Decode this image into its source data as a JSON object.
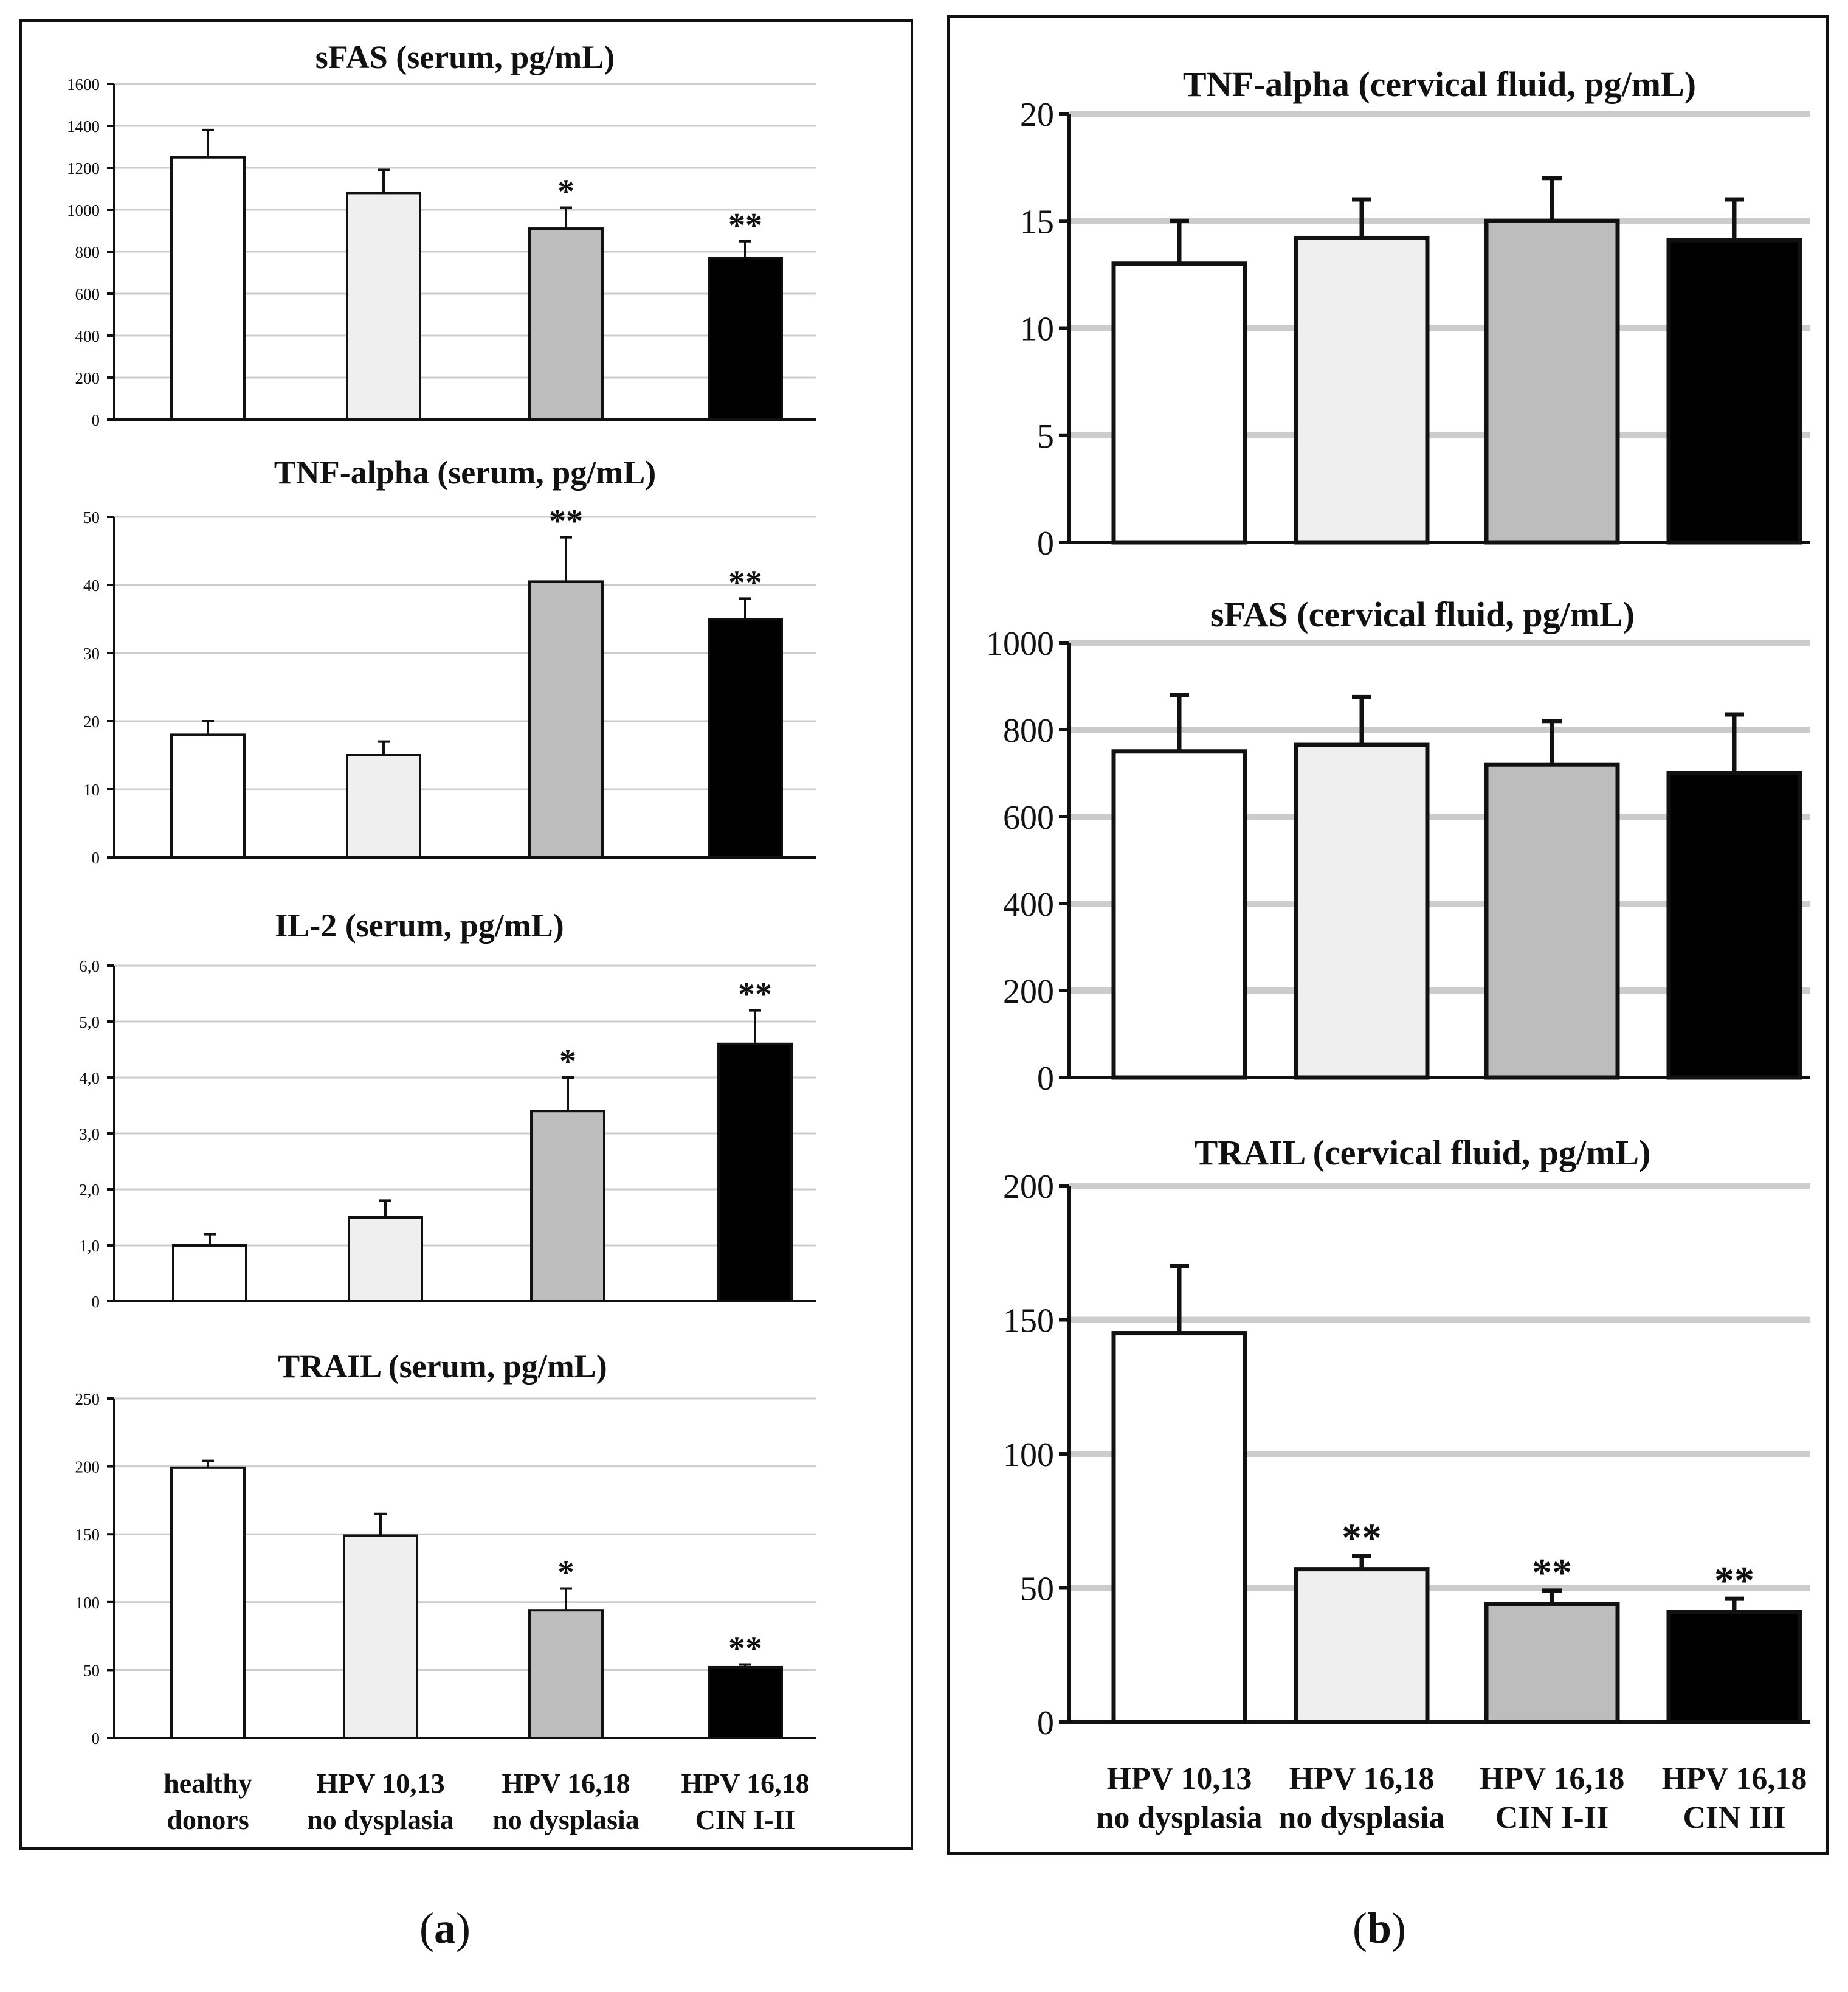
{
  "captions": {
    "a": "a",
    "b": "b"
  },
  "colors": {
    "healthy": "#ffffff",
    "light": "#efefef",
    "mid": "#bdbdbd",
    "dark": "#000000",
    "grid": "#cccccc",
    "axis": "#111111"
  },
  "chart_data": [
    {
      "panel": "a",
      "type": "bar",
      "title": "sFAS (serum, pg/mL)",
      "categories": [
        "healthy donors",
        "HPV 10,13 no dysplasia",
        "HPV 16,18 no dysplasia",
        "HPV 16,18 CIN I-II"
      ],
      "values": [
        1250,
        1080,
        910,
        770
      ],
      "errors": [
        130,
        110,
        100,
        80
      ],
      "significance": [
        "",
        "",
        "*",
        "**"
      ],
      "ylim": [
        0,
        1600
      ],
      "yticks": [
        0,
        200,
        400,
        600,
        800,
        1000,
        1200,
        1400,
        1600
      ],
      "ytick_labels": [
        "0",
        "200",
        "400",
        "600",
        "800",
        "1000",
        "1200",
        "1400",
        "1600"
      ]
    },
    {
      "panel": "a",
      "type": "bar",
      "title": "TNF-alpha (serum, pg/mL)",
      "categories": [
        "healthy donors",
        "HPV 10,13 no dysplasia",
        "HPV 16,18 no dysplasia",
        "HPV 16,18 CIN I-II"
      ],
      "values": [
        18,
        15,
        40.5,
        35
      ],
      "errors": [
        2,
        2,
        6.5,
        3
      ],
      "significance": [
        "",
        "",
        "**",
        "**"
      ],
      "ylim": [
        0,
        50
      ],
      "yticks": [
        0,
        10,
        20,
        30,
        40,
        50
      ],
      "ytick_labels": [
        "0",
        "10",
        "20",
        "30",
        "40",
        "50"
      ]
    },
    {
      "panel": "a",
      "type": "bar",
      "title": "IL-2 (serum, pg/mL)",
      "categories": [
        "healthy donors",
        "HPV 10,13 no dysplasia",
        "HPV 16,18 no dysplasia",
        "HPV 16,18 CIN I-II"
      ],
      "values": [
        1.0,
        1.5,
        3.4,
        4.6
      ],
      "errors": [
        0.2,
        0.3,
        0.6,
        0.6
      ],
      "significance": [
        "",
        "",
        "*",
        "**"
      ],
      "ylim": [
        0,
        6
      ],
      "yticks": [
        0,
        1,
        2,
        3,
        4,
        5,
        6
      ],
      "ytick_labels": [
        "0",
        "1,0",
        "2,0",
        "3,0",
        "4,0",
        "5,0",
        "6,0"
      ]
    },
    {
      "panel": "a",
      "type": "bar",
      "title": "TRAIL (serum, pg/mL)",
      "categories": [
        "healthy donors",
        "HPV 10,13 no dysplasia",
        "HPV 16,18 no dysplasia",
        "HPV 16,18 CIN I-II"
      ],
      "values": [
        199,
        149,
        94,
        52
      ],
      "errors": [
        5,
        16,
        16,
        2
      ],
      "significance": [
        "",
        "",
        "*",
        "**"
      ],
      "ylim": [
        0,
        250
      ],
      "yticks": [
        0,
        50,
        100,
        150,
        200,
        250
      ],
      "ytick_labels": [
        "0",
        "50",
        "100",
        "150",
        "200",
        "250"
      ],
      "xtick_lines": [
        [
          "healthy",
          "donors"
        ],
        [
          "HPV 10,13",
          "no dysplasia"
        ],
        [
          "HPV 16,18",
          "no dysplasia"
        ],
        [
          "HPV 16,18",
          "CIN I-II"
        ]
      ]
    },
    {
      "panel": "b",
      "type": "bar",
      "title": "TNF-alpha (cervical fluid, pg/mL)",
      "categories": [
        "HPV 10,13 no dysplasia",
        "HPV 16,18 no dysplasia",
        "HPV 16,18 CIN I-II",
        "HPV 16,18 CIN III"
      ],
      "values": [
        13,
        14.2,
        15,
        14.1
      ],
      "errors": [
        2,
        1.8,
        2,
        1.9
      ],
      "significance": [
        "",
        "",
        "",
        ""
      ],
      "ylim": [
        0,
        20
      ],
      "yticks": [
        0,
        5,
        10,
        15,
        20
      ],
      "ytick_labels": [
        "0",
        "5",
        "10",
        "15",
        "20"
      ]
    },
    {
      "panel": "b",
      "type": "bar",
      "title": "sFAS (cervical fluid, pg/mL)",
      "categories": [
        "HPV 10,13 no dysplasia",
        "HPV 16,18 no dysplasia",
        "HPV 16,18 CIN I-II",
        "HPV 16,18 CIN III"
      ],
      "values": [
        750,
        765,
        720,
        700
      ],
      "errors": [
        130,
        110,
        100,
        135
      ],
      "significance": [
        "",
        "",
        "",
        ""
      ],
      "ylim": [
        0,
        1000
      ],
      "yticks": [
        0,
        200,
        400,
        600,
        800,
        1000
      ],
      "ytick_labels": [
        "0",
        "200",
        "400",
        "600",
        "800",
        "1000"
      ]
    },
    {
      "panel": "b",
      "type": "bar",
      "title": "TRAIL (cervical fluid, pg/mL)",
      "categories": [
        "HPV 10,13 no dysplasia",
        "HPV 16,18 no dysplasia",
        "HPV 16,18 CIN I-II",
        "HPV 16,18 CIN III"
      ],
      "values": [
        145,
        57,
        44,
        41
      ],
      "errors": [
        25,
        5,
        5,
        5
      ],
      "significance": [
        "",
        "**",
        "**",
        "**"
      ],
      "ylim": [
        0,
        200
      ],
      "yticks": [
        0,
        50,
        100,
        150,
        200
      ],
      "ytick_labels": [
        "0",
        "50",
        "100",
        "150",
        "200"
      ],
      "xtick_lines": [
        [
          "HPV 10,13",
          "no dysplasia"
        ],
        [
          "HPV 16,18",
          "no dysplasia"
        ],
        [
          "HPV 16,18",
          "CIN I-II"
        ],
        [
          "HPV 16,18",
          "CIN III"
        ]
      ]
    }
  ]
}
